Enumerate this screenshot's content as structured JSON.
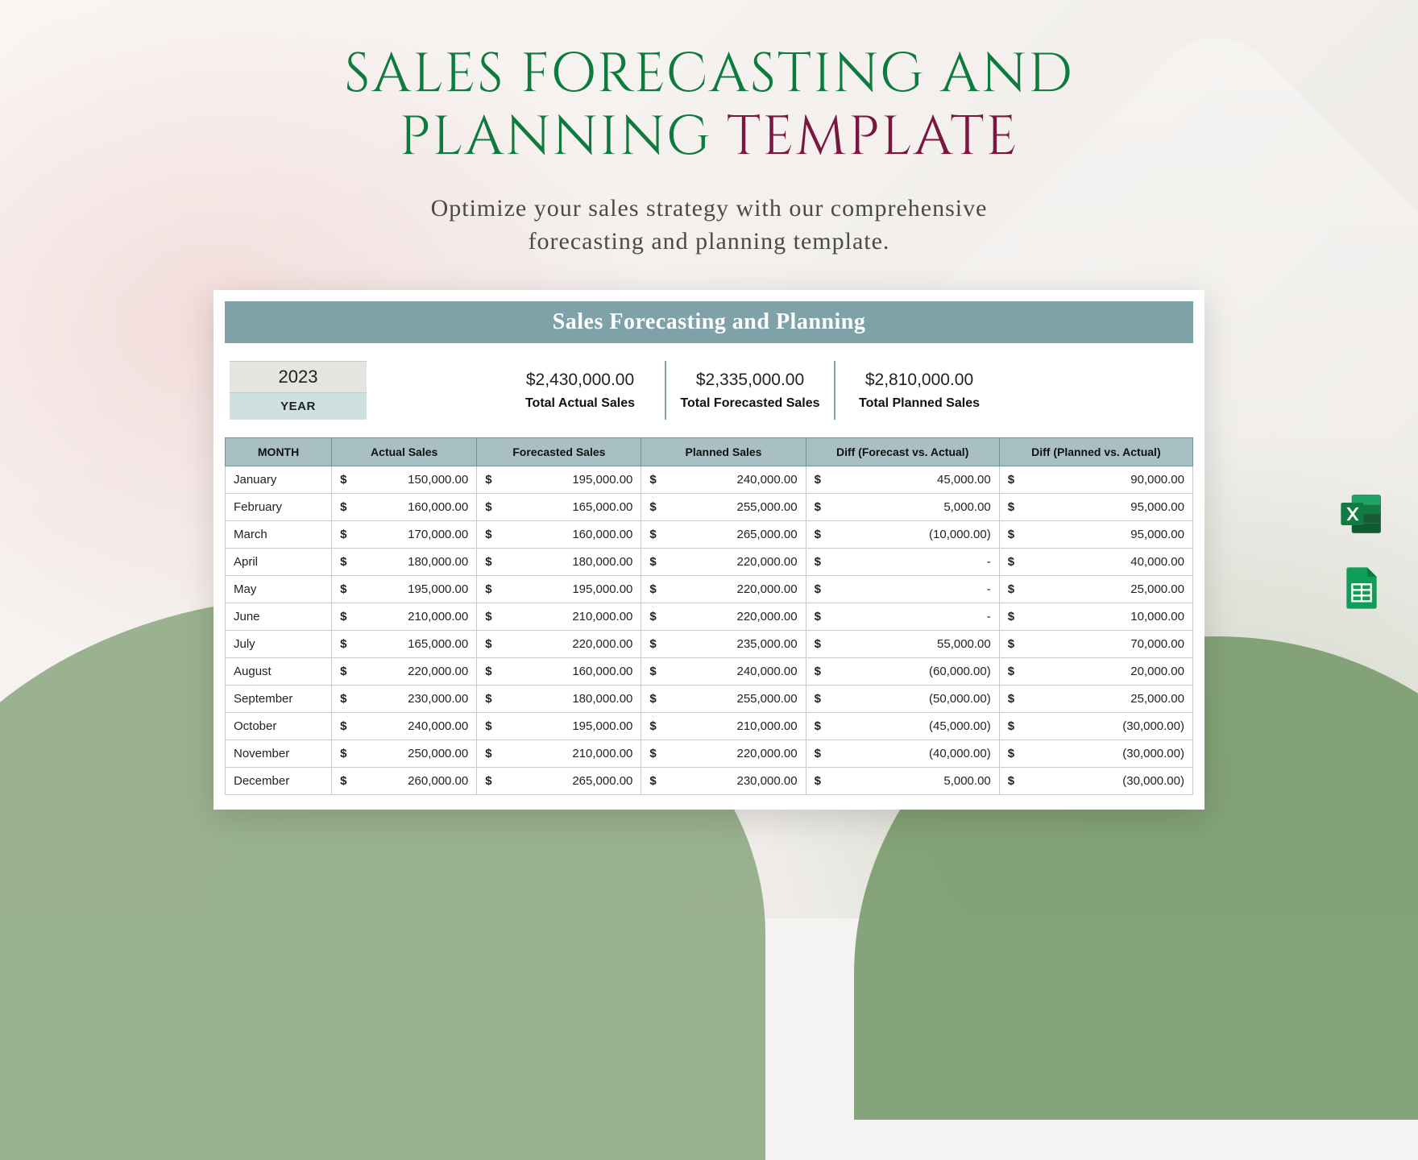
{
  "header": {
    "title_line1": "SALES FORECASTING AND",
    "title_line2a": "PLANNING",
    "title_line2b": "TEMPLATE",
    "subtitle_line1": "Optimize your sales strategy with our comprehensive",
    "subtitle_line2": "forecasting and planning template.",
    "title_color_green": "#0d7a3e",
    "title_color_maroon": "#7a1740",
    "subtitle_color": "#4a4a4a"
  },
  "sheet": {
    "banner_title": "Sales Forecasting and Planning",
    "banner_bg": "#7fa1a8",
    "banner_fg": "#ffffff",
    "year_value": "2023",
    "year_label": "YEAR",
    "summary": [
      {
        "value": "$2,430,000.00",
        "label": "Total Actual Sales"
      },
      {
        "value": "$2,335,000.00",
        "label": "Total Forecasted Sales"
      },
      {
        "value": "$2,810,000.00",
        "label": "Total Planned Sales"
      }
    ],
    "columns": [
      "MONTH",
      "Actual Sales",
      "Forecasted Sales",
      "Planned Sales",
      "Diff (Forecast vs. Actual)",
      "Diff (Planned vs. Actual)"
    ],
    "column_widths_pct": [
      11,
      15,
      17,
      17,
      20,
      20
    ],
    "header_bg": "#a8c0c3",
    "header_border": "#6d9299",
    "cell_border": "#c9c9c9",
    "rows": [
      {
        "month": "January",
        "actual": "150,000.00",
        "forecast": "195,000.00",
        "planned": "240,000.00",
        "diff_fa": "45,000.00",
        "diff_pa": "90,000.00"
      },
      {
        "month": "February",
        "actual": "160,000.00",
        "forecast": "165,000.00",
        "planned": "255,000.00",
        "diff_fa": "5,000.00",
        "diff_pa": "95,000.00"
      },
      {
        "month": "March",
        "actual": "170,000.00",
        "forecast": "160,000.00",
        "planned": "265,000.00",
        "diff_fa": "(10,000.00)",
        "diff_pa": "95,000.00"
      },
      {
        "month": "April",
        "actual": "180,000.00",
        "forecast": "180,000.00",
        "planned": "220,000.00",
        "diff_fa": "-",
        "diff_pa": "40,000.00"
      },
      {
        "month": "May",
        "actual": "195,000.00",
        "forecast": "195,000.00",
        "planned": "220,000.00",
        "diff_fa": "-",
        "diff_pa": "25,000.00"
      },
      {
        "month": "June",
        "actual": "210,000.00",
        "forecast": "210,000.00",
        "planned": "220,000.00",
        "diff_fa": "-",
        "diff_pa": "10,000.00"
      },
      {
        "month": "July",
        "actual": "165,000.00",
        "forecast": "220,000.00",
        "planned": "235,000.00",
        "diff_fa": "55,000.00",
        "diff_pa": "70,000.00"
      },
      {
        "month": "August",
        "actual": "220,000.00",
        "forecast": "160,000.00",
        "planned": "240,000.00",
        "diff_fa": "(60,000.00)",
        "diff_pa": "20,000.00"
      },
      {
        "month": "September",
        "actual": "230,000.00",
        "forecast": "180,000.00",
        "planned": "255,000.00",
        "diff_fa": "(50,000.00)",
        "diff_pa": "25,000.00"
      },
      {
        "month": "October",
        "actual": "240,000.00",
        "forecast": "195,000.00",
        "planned": "210,000.00",
        "diff_fa": "(45,000.00)",
        "diff_pa": "(30,000.00)"
      },
      {
        "month": "November",
        "actual": "250,000.00",
        "forecast": "210,000.00",
        "planned": "220,000.00",
        "diff_fa": "(40,000.00)",
        "diff_pa": "(30,000.00)"
      },
      {
        "month": "December",
        "actual": "260,000.00",
        "forecast": "265,000.00",
        "planned": "230,000.00",
        "diff_fa": "5,000.00",
        "diff_pa": "(30,000.00)"
      }
    ]
  },
  "icons": {
    "excel": {
      "name": "excel-icon",
      "bg": "#107c41",
      "fg": "#ffffff"
    },
    "sheets": {
      "name": "google-sheets-icon",
      "bg": "#0f9d58",
      "fg": "#ffffff"
    }
  },
  "background": {
    "pink_tint": "rgba(240,200,200,0.5)",
    "green_blob1": "#8aa77e",
    "green_blob2": "#7a9b6e"
  }
}
